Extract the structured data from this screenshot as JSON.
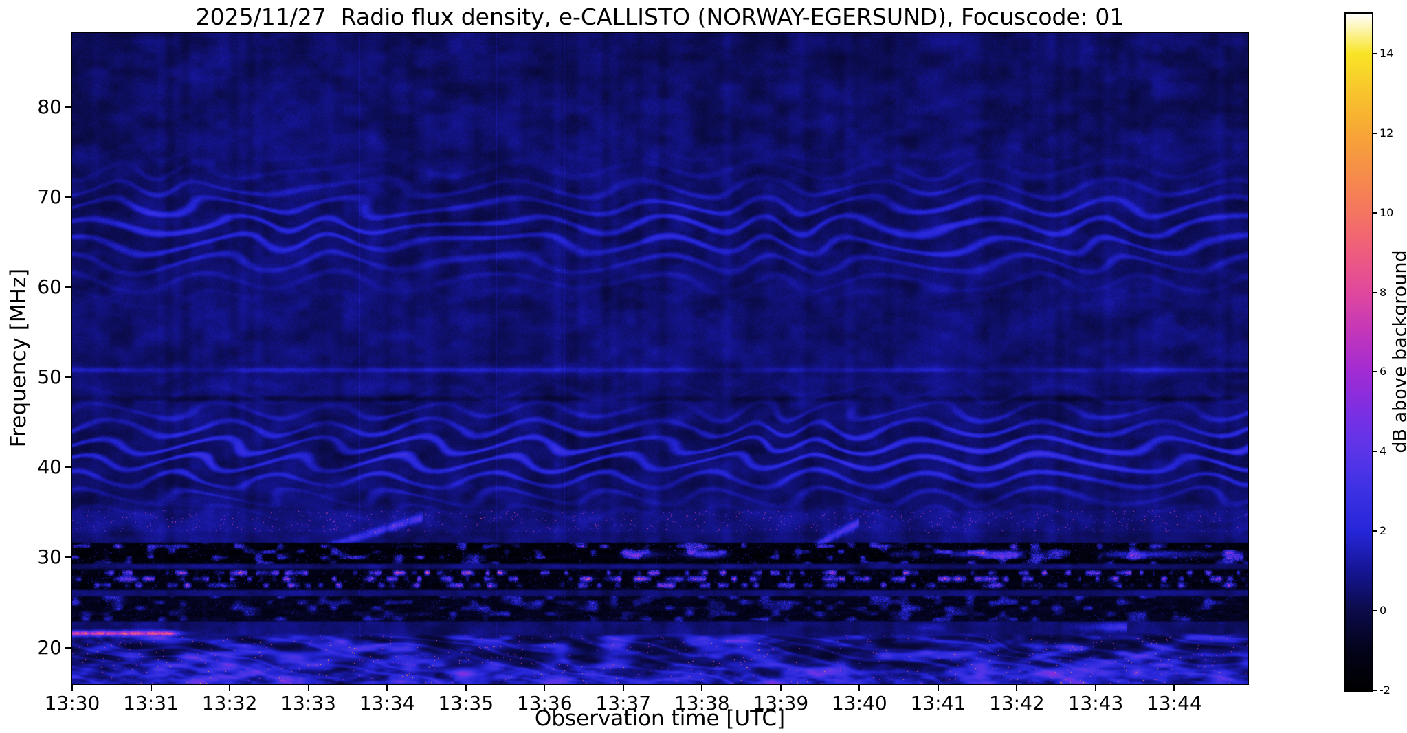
{
  "chart_data": {
    "type": "heatmap",
    "title": "2025/11/27  Radio flux density, e-CALLISTO (NORWAY-EGERSUND), Focuscode: 01",
    "xlabel": "Observation time [UTC]",
    "ylabel": "Frequency [MHz]",
    "x_ticks": [
      "13:30",
      "13:31",
      "13:32",
      "13:33",
      "13:34",
      "13:35",
      "13:36",
      "13:37",
      "13:38",
      "13:39",
      "13:40",
      "13:41",
      "13:42",
      "13:43",
      "13:44"
    ],
    "x_tick_minutes": [
      0,
      1,
      2,
      3,
      4,
      5,
      6,
      7,
      8,
      9,
      10,
      11,
      12,
      13,
      14
    ],
    "x_range_minutes": [
      0,
      14.93
    ],
    "y_ticks": [
      80,
      70,
      60,
      50,
      40,
      30,
      20
    ],
    "y_range_mhz": [
      16.0,
      88.2
    ],
    "grid": false,
    "colorbar": {
      "label": "dB above background",
      "ticks": [
        14,
        12,
        10,
        8,
        6,
        4,
        2,
        0,
        -2
      ],
      "range": [
        -2,
        15
      ],
      "colormap_stops": [
        {
          "pos": 0.0,
          "color": "#000000"
        },
        {
          "pos": 0.059,
          "color": "#03031a"
        },
        {
          "pos": 0.118,
          "color": "#0b0b4a"
        },
        {
          "pos": 0.176,
          "color": "#151593"
        },
        {
          "pos": 0.235,
          "color": "#2526d8"
        },
        {
          "pos": 0.294,
          "color": "#3b31e3"
        },
        {
          "pos": 0.353,
          "color": "#5b35e9"
        },
        {
          "pos": 0.412,
          "color": "#7b2fe2"
        },
        {
          "pos": 0.471,
          "color": "#a22bd3"
        },
        {
          "pos": 0.529,
          "color": "#c236ba"
        },
        {
          "pos": 0.588,
          "color": "#e0489d"
        },
        {
          "pos": 0.647,
          "color": "#ee5c7e"
        },
        {
          "pos": 0.706,
          "color": "#f47560"
        },
        {
          "pos": 0.765,
          "color": "#f68d49"
        },
        {
          "pos": 0.824,
          "color": "#f7a636"
        },
        {
          "pos": 0.882,
          "color": "#f8c32c"
        },
        {
          "pos": 0.941,
          "color": "#f9e426"
        },
        {
          "pos": 1.0,
          "color": "#ffffff"
        }
      ]
    },
    "features": [
      {
        "kind": "ripple",
        "f_center": 66.5,
        "f_sigma": 3.6,
        "amp": 1.7,
        "stripes_per_mhz": 0.48,
        "wave_min": 1.6,
        "seed": 11
      },
      {
        "kind": "ripple",
        "f_center": 41.5,
        "f_sigma": 3.3,
        "amp": 2.0,
        "stripes_per_mhz": 0.52,
        "wave_min": 1.35,
        "seed": 23
      },
      {
        "kind": "line",
        "f": 50.8,
        "amp": 1.4,
        "seed": 5
      },
      {
        "kind": "line",
        "f": 47.6,
        "amp": -0.9,
        "seed": 8
      },
      {
        "kind": "speckle_band",
        "f_low": 32.8,
        "f_high": 35.2,
        "density": 0.016,
        "amp": 6,
        "seed": 31
      },
      {
        "kind": "streak",
        "t0": 3.25,
        "f0": 31.2,
        "t1": 4.45,
        "f1": 34.4,
        "amp": 4.5,
        "width": 0.3
      },
      {
        "kind": "streak",
        "t0": 9.3,
        "f0": 30.6,
        "t1": 10.0,
        "f1": 33.9,
        "amp": 5.0,
        "width": 0.3
      },
      {
        "kind": "dark_speckle_band",
        "f_low": 29.3,
        "f_high": 31.6,
        "base": -1.5,
        "burst_amp": 7,
        "burst_threshold": 0.62,
        "seed": 41
      },
      {
        "kind": "patch_line",
        "f": 30.35,
        "t_start": 6.8,
        "t_end": 14.93,
        "amp": 9,
        "seed": 55
      },
      {
        "kind": "bright_rfi_band",
        "f_low": 26.4,
        "f_high": 28.7,
        "base": -1.3,
        "rows": [
          26.9,
          27.6,
          28.3
        ],
        "dash_amp": 13,
        "seed": 61
      },
      {
        "kind": "dark_speckle_band",
        "f_low": 22.9,
        "f_high": 25.7,
        "base": -0.9,
        "burst_amp": 4.5,
        "burst_threshold": 0.55,
        "seed": 71
      },
      {
        "kind": "patch_line",
        "f": 22.25,
        "t_start": 10.6,
        "t_end": 13.4,
        "amp": 4.5,
        "seed": 77
      },
      {
        "kind": "hline_segment",
        "f": 21.5,
        "t_start": 0,
        "t_end": 1.25,
        "amp": 12,
        "seed": 83
      },
      {
        "kind": "blob_band",
        "f_high": 21.7,
        "amp": 5.2,
        "seed": 91
      }
    ]
  }
}
